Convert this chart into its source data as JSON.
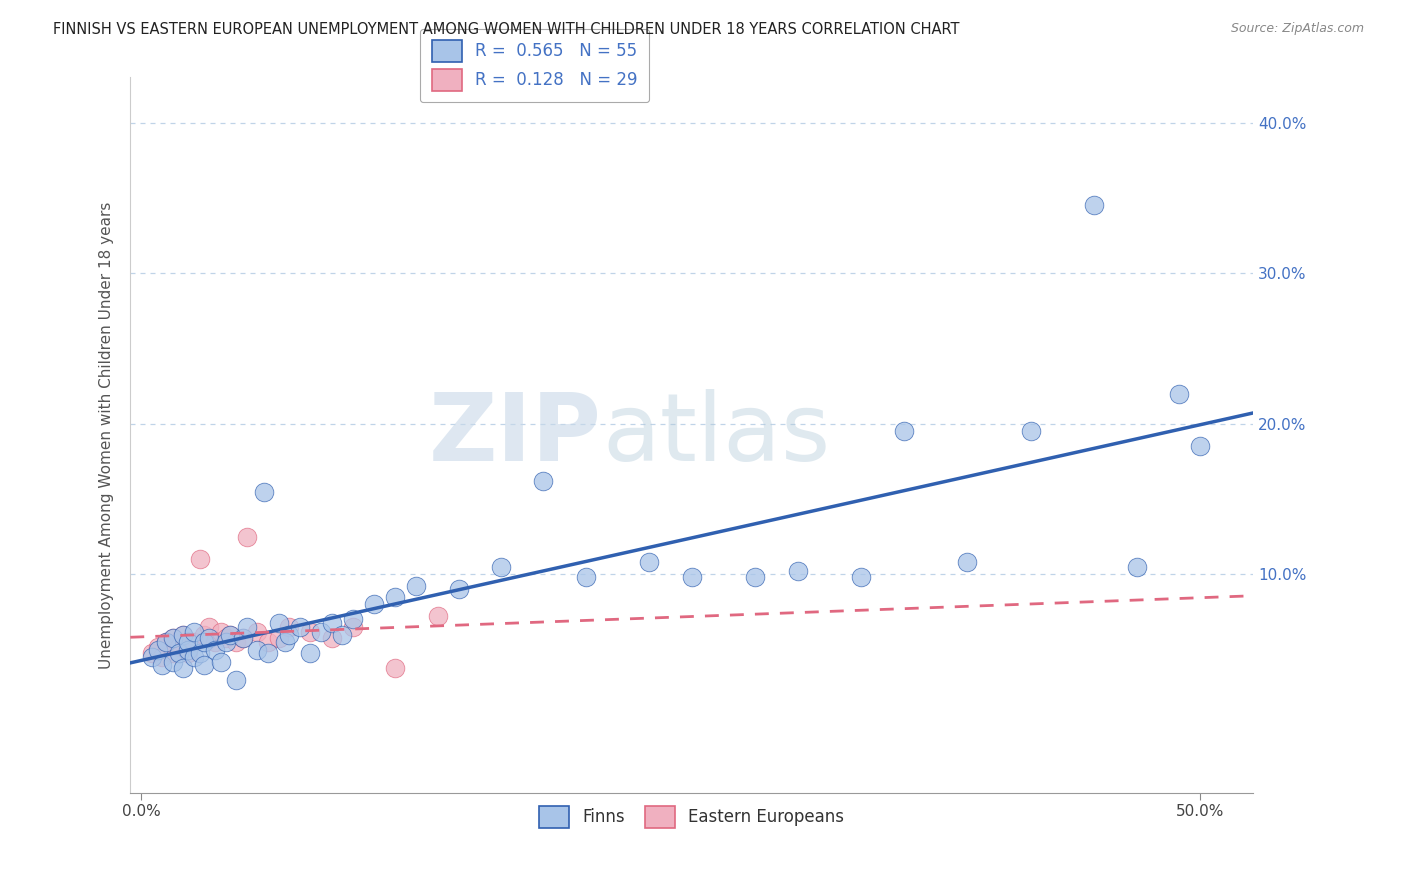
{
  "title": "FINNISH VS EASTERN EUROPEAN UNEMPLOYMENT AMONG WOMEN WITH CHILDREN UNDER 18 YEARS CORRELATION CHART",
  "source": "Source: ZipAtlas.com",
  "ylabel": "Unemployment Among Women with Children Under 18 years",
  "x_tick_positions": [
    0.0,
    0.5
  ],
  "x_tick_labels": [
    "0.0%",
    "50.0%"
  ],
  "y_ticks": [
    0.1,
    0.2,
    0.3,
    0.4
  ],
  "y_tick_labels": [
    "10.0%",
    "20.0%",
    "30.0%",
    "40.0%"
  ],
  "xlim": [
    -0.005,
    0.525
  ],
  "ylim": [
    -0.045,
    0.43
  ],
  "finns_color": "#a8c4e8",
  "eastern_color": "#f0b0c0",
  "finns_line_color": "#3060b0",
  "eastern_line_color": "#e06880",
  "background_color": "#ffffff",
  "grid_color": "#c0d4e8",
  "R_finns": 0.565,
  "N_finns": 55,
  "R_eastern": 0.128,
  "N_eastern": 29,
  "legend_label_finns": "Finns",
  "legend_label_eastern": "Eastern Europeans",
  "watermark_zip": "ZIP",
  "watermark_atlas": "atlas",
  "finns_x": [
    0.005,
    0.008,
    0.01,
    0.012,
    0.015,
    0.015,
    0.018,
    0.02,
    0.02,
    0.022,
    0.022,
    0.025,
    0.025,
    0.028,
    0.03,
    0.03,
    0.032,
    0.035,
    0.038,
    0.04,
    0.042,
    0.045,
    0.048,
    0.05,
    0.055,
    0.058,
    0.06,
    0.065,
    0.068,
    0.07,
    0.075,
    0.08,
    0.085,
    0.09,
    0.095,
    0.1,
    0.11,
    0.12,
    0.13,
    0.15,
    0.17,
    0.19,
    0.21,
    0.24,
    0.26,
    0.29,
    0.31,
    0.34,
    0.36,
    0.39,
    0.42,
    0.45,
    0.47,
    0.49,
    0.5
  ],
  "finns_y": [
    0.045,
    0.05,
    0.04,
    0.055,
    0.042,
    0.058,
    0.048,
    0.038,
    0.06,
    0.05,
    0.055,
    0.045,
    0.062,
    0.048,
    0.04,
    0.055,
    0.058,
    0.05,
    0.042,
    0.055,
    0.06,
    0.03,
    0.058,
    0.065,
    0.05,
    0.155,
    0.048,
    0.068,
    0.055,
    0.06,
    0.065,
    0.048,
    0.062,
    0.068,
    0.06,
    0.07,
    0.08,
    0.085,
    0.092,
    0.09,
    0.105,
    0.162,
    0.098,
    0.108,
    0.098,
    0.098,
    0.102,
    0.098,
    0.195,
    0.108,
    0.195,
    0.345,
    0.105,
    0.22,
    0.185
  ],
  "eastern_x": [
    0.005,
    0.008,
    0.01,
    0.012,
    0.015,
    0.015,
    0.018,
    0.02,
    0.022,
    0.025,
    0.028,
    0.03,
    0.032,
    0.035,
    0.038,
    0.04,
    0.042,
    0.045,
    0.048,
    0.05,
    0.055,
    0.06,
    0.065,
    0.07,
    0.08,
    0.09,
    0.1,
    0.12,
    0.14
  ],
  "eastern_y": [
    0.048,
    0.052,
    0.045,
    0.055,
    0.048,
    0.058,
    0.052,
    0.06,
    0.048,
    0.055,
    0.11,
    0.06,
    0.065,
    0.055,
    0.062,
    0.058,
    0.06,
    0.055,
    0.058,
    0.125,
    0.062,
    0.055,
    0.058,
    0.065,
    0.062,
    0.058,
    0.065,
    0.038,
    0.072
  ]
}
